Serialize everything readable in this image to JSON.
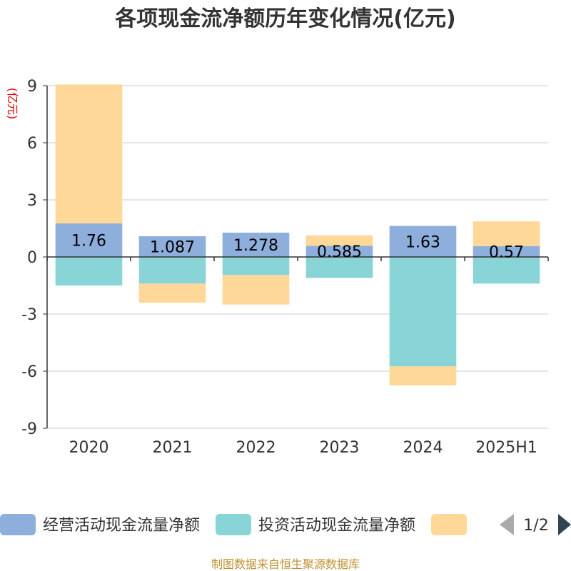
{
  "chart_data": {
    "type": "bar",
    "title": "各项现金流净额历年变化情况(亿元)",
    "y_unit": "(亿元)",
    "categories": [
      "2020",
      "2021",
      "2022",
      "2023",
      "2024",
      "2025H1"
    ],
    "ylim": [
      -9,
      9
    ],
    "yticks": [
      9,
      6,
      3,
      0,
      -3,
      -6,
      -9
    ],
    "grid": true,
    "stacked": true,
    "series": [
      {
        "name": "经营活动现金流量净额",
        "color": "#8eaedb",
        "values": [
          1.76,
          1.087,
          1.278,
          0.585,
          1.63,
          0.57
        ],
        "labels": [
          "1.76",
          "1.087",
          "1.278",
          "0.585",
          "1.63",
          "0.57"
        ]
      },
      {
        "name": "投资活动现金流量净额",
        "color": "#88d4d6",
        "values": [
          -1.5,
          -1.4,
          -0.95,
          -1.1,
          -5.75,
          -1.4
        ]
      },
      {
        "name": "",
        "color": "#fdd898",
        "values": [
          7.3,
          -1.0,
          -1.55,
          0.55,
          -1.0,
          1.3
        ]
      }
    ],
    "legend": {
      "position": "bottom",
      "page": "1/2"
    },
    "source": "制图数据来自恒生聚源数据库"
  }
}
